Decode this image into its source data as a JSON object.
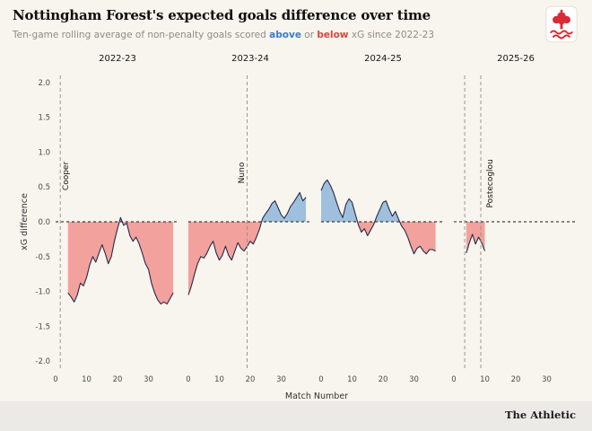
{
  "header": {
    "title": "Nottingham Forest's expected goals difference over time",
    "subtitle_part1": "Ten-game rolling average of non-penalty goals scored ",
    "subtitle_above": "above",
    "subtitle_or": " or ",
    "subtitle_below": "below",
    "subtitle_part2": " xG since 2022-23",
    "above_color": "#3a7dc9",
    "below_color": "#d9453c"
  },
  "logo": "nottingham-forest-crest",
  "footer": {
    "brand": "The Athletic"
  },
  "chart_data": {
    "type": "area",
    "title": "Nottingham Forest's expected goals difference over time",
    "subtitle": "Ten-game rolling average of non-penalty goals scored above or below xG since 2022-23",
    "xlabel": "Match Number",
    "ylabel": "xG difference",
    "xlim": [
      0,
      40
    ],
    "ylim": [
      -2.1,
      2.1
    ],
    "yticks": [
      "2.0",
      "1.5",
      "1.0",
      "0.5",
      "0.0",
      "-0.5",
      "-1.0",
      "-1.5",
      "-2.0"
    ],
    "grid": false,
    "zero_line": "dashed",
    "line_color": "#272a49",
    "fill_above_color": "#9fc0dc",
    "fill_below_color": "#f2a19c",
    "vline_color": "#8d8d8d",
    "panels": [
      {
        "season": "2022-23",
        "xticks": [
          0,
          10,
          20,
          30
        ],
        "vlines": [
          1.5
        ],
        "labels": [
          {
            "text": "Cooper",
            "x": 4,
            "y": 0.45
          }
        ],
        "points": [
          [
            4,
            -1.02
          ],
          [
            5,
            -1.08
          ],
          [
            6,
            -1.15
          ],
          [
            7,
            -1.05
          ],
          [
            8,
            -0.88
          ],
          [
            9,
            -0.92
          ],
          [
            10,
            -0.8
          ],
          [
            11,
            -0.62
          ],
          [
            12,
            -0.5
          ],
          [
            13,
            -0.58
          ],
          [
            14,
            -0.45
          ],
          [
            15,
            -0.33
          ],
          [
            16,
            -0.45
          ],
          [
            17,
            -0.6
          ],
          [
            18,
            -0.5
          ],
          [
            19,
            -0.28
          ],
          [
            20,
            -0.1
          ],
          [
            21,
            0.06
          ],
          [
            22,
            -0.05
          ],
          [
            23,
            -0.02
          ],
          [
            24,
            -0.2
          ],
          [
            25,
            -0.28
          ],
          [
            26,
            -0.22
          ],
          [
            27,
            -0.32
          ],
          [
            28,
            -0.45
          ],
          [
            29,
            -0.6
          ],
          [
            30,
            -0.68
          ],
          [
            31,
            -0.88
          ],
          [
            32,
            -1.02
          ],
          [
            33,
            -1.12
          ],
          [
            34,
            -1.18
          ],
          [
            35,
            -1.15
          ],
          [
            36,
            -1.18
          ],
          [
            37,
            -1.1
          ],
          [
            38,
            -1.02
          ]
        ]
      },
      {
        "season": "2023-24",
        "xticks": [
          0,
          10,
          20,
          30
        ],
        "vlines": [
          19
        ],
        "labels": [
          {
            "text": "Nuno",
            "x": 18,
            "y": 0.55
          }
        ],
        "points": [
          [
            0,
            -1.05
          ],
          [
            1,
            -0.92
          ],
          [
            2,
            -0.75
          ],
          [
            3,
            -0.6
          ],
          [
            4,
            -0.5
          ],
          [
            5,
            -0.52
          ],
          [
            6,
            -0.45
          ],
          [
            7,
            -0.35
          ],
          [
            8,
            -0.28
          ],
          [
            9,
            -0.45
          ],
          [
            10,
            -0.55
          ],
          [
            11,
            -0.48
          ],
          [
            12,
            -0.35
          ],
          [
            13,
            -0.48
          ],
          [
            14,
            -0.55
          ],
          [
            15,
            -0.42
          ],
          [
            16,
            -0.3
          ],
          [
            17,
            -0.38
          ],
          [
            18,
            -0.42
          ],
          [
            19,
            -0.35
          ],
          [
            20,
            -0.28
          ],
          [
            21,
            -0.32
          ],
          [
            22,
            -0.22
          ],
          [
            23,
            -0.1
          ],
          [
            24,
            0.05
          ],
          [
            25,
            0.12
          ],
          [
            26,
            0.18
          ],
          [
            27,
            0.26
          ],
          [
            28,
            0.3
          ],
          [
            29,
            0.2
          ],
          [
            30,
            0.1
          ],
          [
            31,
            0.05
          ],
          [
            32,
            0.12
          ],
          [
            33,
            0.22
          ],
          [
            34,
            0.28
          ],
          [
            35,
            0.35
          ],
          [
            36,
            0.42
          ],
          [
            37,
            0.3
          ],
          [
            38,
            0.35
          ]
        ]
      },
      {
        "season": "2024-25",
        "xticks": [
          0,
          10,
          20,
          30
        ],
        "vlines": [],
        "labels": [],
        "points": [
          [
            0,
            0.45
          ],
          [
            1,
            0.55
          ],
          [
            2,
            0.6
          ],
          [
            3,
            0.52
          ],
          [
            4,
            0.42
          ],
          [
            5,
            0.28
          ],
          [
            6,
            0.15
          ],
          [
            7,
            0.06
          ],
          [
            8,
            0.25
          ],
          [
            9,
            0.33
          ],
          [
            10,
            0.28
          ],
          [
            11,
            0.12
          ],
          [
            12,
            -0.04
          ],
          [
            13,
            -0.15
          ],
          [
            14,
            -0.1
          ],
          [
            15,
            -0.2
          ],
          [
            16,
            -0.12
          ],
          [
            17,
            -0.04
          ],
          [
            18,
            0.08
          ],
          [
            19,
            0.18
          ],
          [
            20,
            0.28
          ],
          [
            21,
            0.3
          ],
          [
            22,
            0.18
          ],
          [
            23,
            0.08
          ],
          [
            24,
            0.15
          ],
          [
            25,
            0.04
          ],
          [
            26,
            -0.06
          ],
          [
            27,
            -0.12
          ],
          [
            28,
            -0.22
          ],
          [
            29,
            -0.35
          ],
          [
            30,
            -0.46
          ],
          [
            31,
            -0.38
          ],
          [
            32,
            -0.35
          ],
          [
            33,
            -0.42
          ],
          [
            34,
            -0.46
          ],
          [
            35,
            -0.4
          ],
          [
            36,
            -0.4
          ],
          [
            37,
            -0.42
          ]
        ]
      },
      {
        "season": "2025-26",
        "xticks": [
          0,
          10,
          20,
          30
        ],
        "vlines": [
          3.5,
          8.7
        ],
        "labels": [
          {
            "text": "Postecoglou",
            "x": 12.5,
            "y": 0.2
          }
        ],
        "points": [
          [
            4,
            -0.45
          ],
          [
            5,
            -0.3
          ],
          [
            6,
            -0.18
          ],
          [
            7,
            -0.32
          ],
          [
            8,
            -0.22
          ],
          [
            9,
            -0.3
          ],
          [
            10,
            -0.42
          ]
        ]
      }
    ]
  }
}
